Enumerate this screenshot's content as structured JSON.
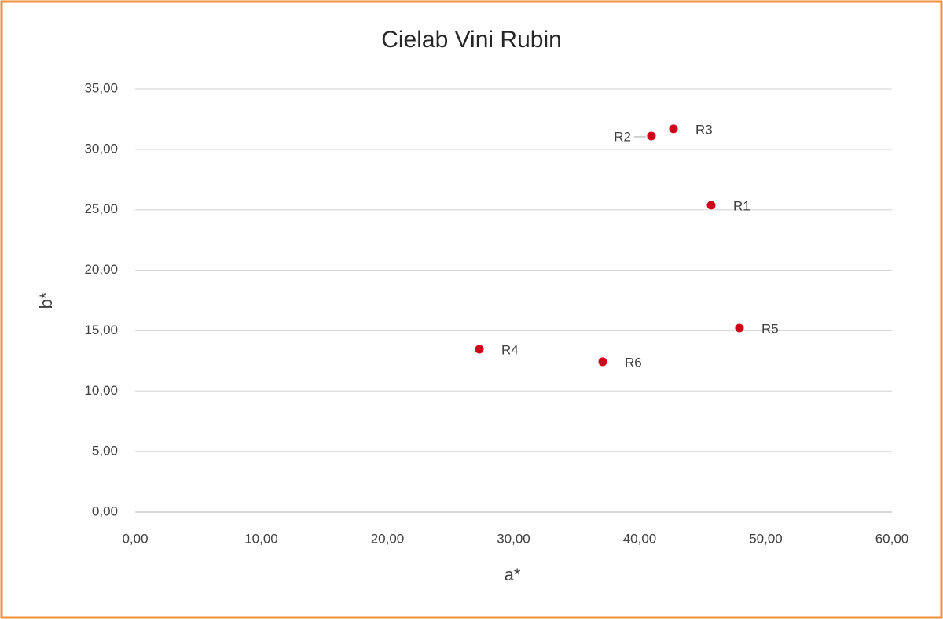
{
  "chart_data": {
    "type": "scatter",
    "title": "Cielab Vini Rubin",
    "x_label": "a*",
    "y_label": "b*",
    "labels": [
      "R1",
      "R2",
      "R3",
      "R4",
      "R5",
      "R6"
    ],
    "x": [
      45.67,
      40.93,
      42.68,
      27.29,
      47.91,
      37.07
    ],
    "values": [
      25.37,
      31.1,
      31.69,
      13.47,
      15.22,
      12.43
    ],
    "color": "#d0021b",
    "xlim": [
      0,
      60
    ],
    "xticks": [
      {
        "value": 0,
        "label": "0,00"
      },
      {
        "value": 10,
        "label": "10,00"
      },
      {
        "value": 20,
        "label": "20,00"
      },
      {
        "value": 30,
        "label": "30,00"
      },
      {
        "value": 40,
        "label": "40,00"
      },
      {
        "value": 50,
        "label": "50,00"
      },
      {
        "value": 60,
        "label": "60,00"
      }
    ],
    "ylim": [
      0,
      35
    ],
    "yticks": [
      {
        "value": 0,
        "label": "0,00"
      },
      {
        "value": 5,
        "label": "5,00"
      },
      {
        "value": 10,
        "label": "10,00"
      },
      {
        "value": 15,
        "label": "15,00"
      },
      {
        "value": 20,
        "label": "20,00"
      },
      {
        "value": 25,
        "label": "25,00"
      },
      {
        "value": 30,
        "label": "30,00"
      },
      {
        "value": 35,
        "label": "35,00"
      }
    ],
    "grid": true
  }
}
